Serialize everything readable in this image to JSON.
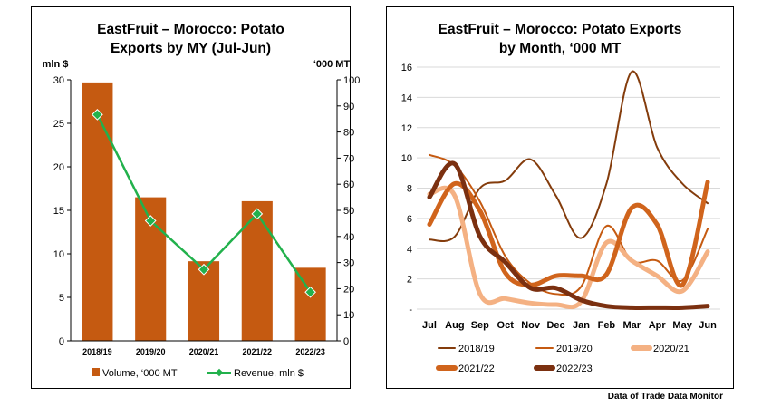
{
  "source_note": "Data of Trade Data Monitor",
  "chart_data": [
    {
      "type": "bar",
      "title_line1": "EastFruit – Morocco: Potato",
      "title_line2": "Exports by MY (Jul-Jun)",
      "left_axis_label": "mln $",
      "right_axis_label": "‘000 MT",
      "categories": [
        "2018/19",
        "2019/20",
        "2020/21",
        "2021/22",
        "2022/23"
      ],
      "series": [
        {
          "name": "Volume, ‘000 MT",
          "type": "bar",
          "axis": "right",
          "color": "#c55a11",
          "values": [
            99,
            55,
            30.5,
            53.5,
            28
          ]
        },
        {
          "name": "Revenue, mln $",
          "type": "line",
          "axis": "left",
          "color": "#22b14c",
          "values": [
            26,
            13.8,
            8.2,
            14.6,
            5.6
          ]
        }
      ],
      "y_left": {
        "min": 0,
        "max": 30,
        "ticks": [
          "0",
          "5",
          "10",
          "15",
          "20",
          "25",
          "30"
        ]
      },
      "y_right": {
        "min": 0,
        "max": 100,
        "ticks": [
          "0",
          "10",
          "20",
          "30",
          "40",
          "50",
          "60",
          "70",
          "80",
          "90",
          "100"
        ]
      },
      "legend_position": "bottom"
    },
    {
      "type": "line",
      "title_line1": "EastFruit – Morocco: Potato Exports",
      "title_line2": "by Month, ‘000 MT",
      "categories": [
        "Jul",
        "Aug",
        "Sep",
        "Oct",
        "Nov",
        "Dec",
        "Jan",
        "Feb",
        "Mar",
        "Apr",
        "May",
        "Jun"
      ],
      "ylim": [
        0,
        16
      ],
      "y_ticks": [
        "-",
        "2",
        "4",
        "6",
        "8",
        "10",
        "12",
        "14",
        "16"
      ],
      "grid": true,
      "legend_position": "bottom",
      "series": [
        {
          "name": "2018/19",
          "color": "#843c0c",
          "width": 2,
          "values": [
            4.6,
            4.8,
            8.0,
            8.5,
            9.9,
            7.5,
            4.7,
            8.3,
            15.7,
            10.7,
            8.3,
            7.0
          ]
        },
        {
          "name": "2019/20",
          "color": "#c55a11",
          "width": 2,
          "values": [
            10.2,
            9.5,
            7.1,
            3.5,
            1.7,
            1.0,
            1.5,
            5.5,
            3.2,
            3.2,
            1.9,
            5.3
          ]
        },
        {
          "name": "2020/21",
          "color": "#f4b183",
          "width": 5,
          "values": [
            7.6,
            7.5,
            1.0,
            0.7,
            0.4,
            0.3,
            0.5,
            4.4,
            3.2,
            2.2,
            1.2,
            3.8
          ]
        },
        {
          "name": "2021/22",
          "color": "#d0641c",
          "width": 5,
          "values": [
            5.6,
            8.3,
            6.5,
            2.4,
            1.6,
            2.2,
            2.2,
            2.3,
            6.7,
            5.6,
            1.6,
            8.4
          ]
        },
        {
          "name": "2022/23",
          "color": "#7b3010",
          "width": 5,
          "values": [
            7.4,
            9.6,
            4.8,
            3.1,
            1.4,
            1.4,
            0.6,
            0.2,
            0.1,
            0.1,
            0.1,
            0.2
          ]
        }
      ]
    }
  ]
}
